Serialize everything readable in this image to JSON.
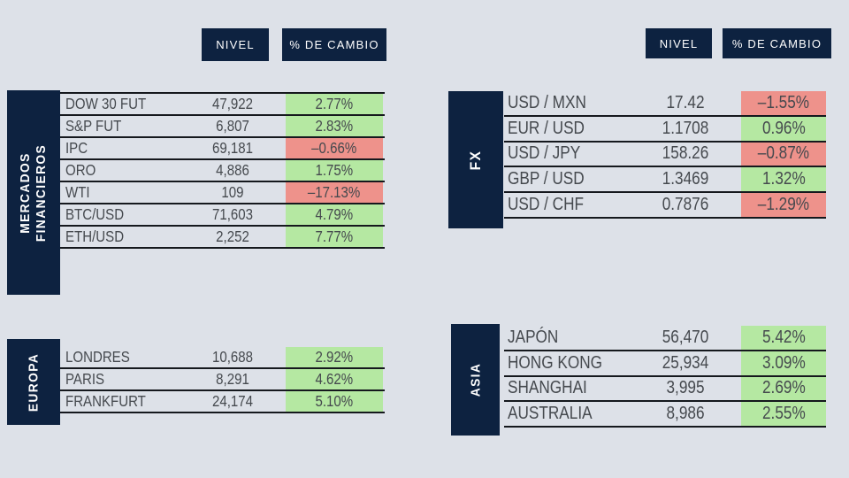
{
  "colors": {
    "background": "#dde1e8",
    "navy": "#0d2240",
    "positive": "#b5e8a2",
    "negative": "#ee928b",
    "text": "#45494e",
    "line": "#15181d"
  },
  "column_headers": {
    "nivel": "NIVEL",
    "cambio": "% DE CAMBIO"
  },
  "sections": {
    "mercados": {
      "title": "MERCADOS FINANCIEROS",
      "rows": [
        {
          "label": "DOW 30 FUT",
          "value": "47,922",
          "change": "2.77%",
          "dir": "up"
        },
        {
          "label": "S&P FUT",
          "value": "6,807",
          "change": "2.83%",
          "dir": "up"
        },
        {
          "label": "IPC",
          "value": "69,181",
          "change": "–0.66%",
          "dir": "down"
        },
        {
          "label": "ORO",
          "value": "4,886",
          "change": "1.75%",
          "dir": "up"
        },
        {
          "label": "WTI",
          "value": "109",
          "change": "–17.13%",
          "dir": "down"
        },
        {
          "label": "BTC/USD",
          "value": "71,603",
          "change": "4.79%",
          "dir": "up"
        },
        {
          "label": "ETH/USD",
          "value": "2,252",
          "change": "7.77%",
          "dir": "up"
        }
      ]
    },
    "fx": {
      "title": "FX",
      "rows": [
        {
          "label": "USD / MXN",
          "value": "17.42",
          "change": "–1.55%",
          "dir": "down"
        },
        {
          "label": "EUR / USD",
          "value": "1.1708",
          "change": "0.96%",
          "dir": "up"
        },
        {
          "label": "USD / JPY",
          "value": "158.26",
          "change": "–0.87%",
          "dir": "down"
        },
        {
          "label": "GBP / USD",
          "value": "1.3469",
          "change": "1.32%",
          "dir": "up"
        },
        {
          "label": "USD / CHF",
          "value": "0.7876",
          "change": "–1.29%",
          "dir": "down"
        }
      ]
    },
    "europa": {
      "title": "EUROPA",
      "rows": [
        {
          "label": "LONDRES",
          "value": "10,688",
          "change": "2.92%",
          "dir": "up"
        },
        {
          "label": "PARIS",
          "value": "8,291",
          "change": "4.62%",
          "dir": "up"
        },
        {
          "label": "FRANKFURT",
          "value": "24,174",
          "change": "5.10%",
          "dir": "up"
        }
      ]
    },
    "asia": {
      "title": "ASIA",
      "rows": [
        {
          "label": "JAPÓN",
          "value": "56,470",
          "change": "5.42%",
          "dir": "up"
        },
        {
          "label": "HONG KONG",
          "value": "25,934",
          "change": "3.09%",
          "dir": "up"
        },
        {
          "label": "SHANGHAI",
          "value": "3,995",
          "change": "2.69%",
          "dir": "up"
        },
        {
          "label": "AUSTRALIA",
          "value": "8,986",
          "change": "2.55%",
          "dir": "up"
        }
      ]
    }
  }
}
